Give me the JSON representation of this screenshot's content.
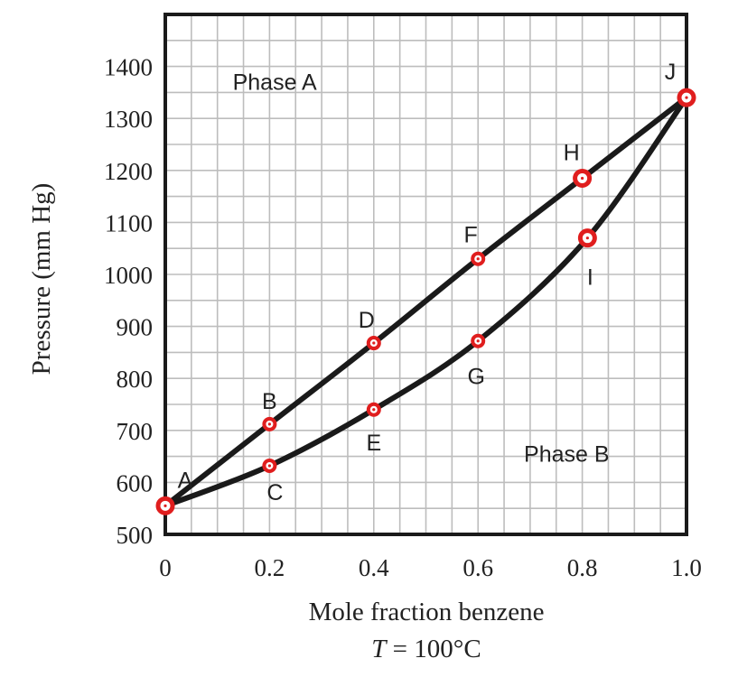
{
  "chart_data": {
    "type": "line",
    "xlabel": "Mole fraction benzene",
    "subtitle_prefix": "T",
    "subtitle_suffix": " = 100°C",
    "ylabel": "Pressure (mm Hg)",
    "xlim": [
      0,
      1.0
    ],
    "ylim": [
      500,
      1500
    ],
    "x_ticks": [
      "0",
      "0.2",
      "0.4",
      "0.6",
      "0.8",
      "1.0"
    ],
    "y_ticks": [
      "500",
      "600",
      "700",
      "800",
      "900",
      "1000",
      "1100",
      "1200",
      "1300",
      "1400"
    ],
    "grid": true,
    "series": [
      {
        "points": [
          [
            0,
            555
          ],
          [
            0.2,
            712
          ],
          [
            0.4,
            868
          ],
          [
            0.6,
            1030
          ],
          [
            0.8,
            1185
          ],
          [
            1.0,
            1340
          ]
        ]
      },
      {
        "points": [
          [
            0,
            555
          ],
          [
            0.2,
            632
          ],
          [
            0.4,
            740
          ],
          [
            0.6,
            872
          ],
          [
            0.81,
            1070
          ],
          [
            1.0,
            1340
          ]
        ]
      }
    ],
    "labeled_points": [
      {
        "label": "A",
        "x": 0,
        "y": 555
      },
      {
        "label": "B",
        "x": 0.2,
        "y": 712
      },
      {
        "label": "C",
        "x": 0.2,
        "y": 632
      },
      {
        "label": "D",
        "x": 0.4,
        "y": 868
      },
      {
        "label": "E",
        "x": 0.4,
        "y": 740
      },
      {
        "label": "F",
        "x": 0.6,
        "y": 1030
      },
      {
        "label": "G",
        "x": 0.6,
        "y": 872
      },
      {
        "label": "H",
        "x": 0.8,
        "y": 1185
      },
      {
        "label": "I",
        "x": 0.81,
        "y": 1070
      },
      {
        "label": "J",
        "x": 1.0,
        "y": 1340
      }
    ],
    "regions": [
      {
        "label": "Phase A",
        "x": 0.21,
        "y": 1355
      },
      {
        "label": "Phase B",
        "x": 0.77,
        "y": 640
      }
    ],
    "colors": {
      "curve": "#1a1a1a",
      "grid": "#bdbdbd",
      "marker": "#e01e1e",
      "marker_center": "#ffffff"
    }
  }
}
